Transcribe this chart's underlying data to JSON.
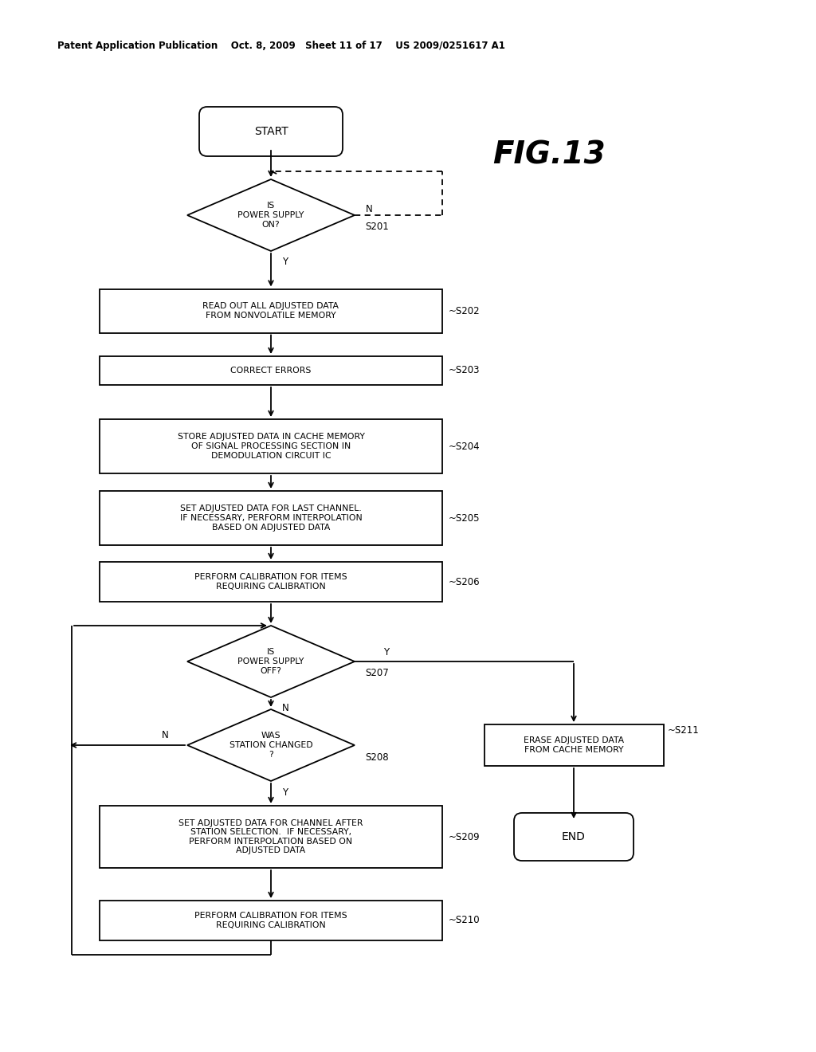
{
  "header": "Patent Application Publication    Oct. 8, 2009   Sheet 11 of 17    US 2009/0251617 A1",
  "fig_label": "FIG.13",
  "bg": "#ffffff",
  "lc": "#000000",
  "tc": "#000000",
  "lw": 1.3,
  "nodes": {
    "start_label": "START",
    "s201_label": "IS\nPOWER SUPPLY\nON?",
    "s201_step": "S201",
    "s202_label": "READ OUT ALL ADJUSTED DATA\nFROM NONVOLATILE MEMORY",
    "s202_step": "~S202",
    "s203_label": "CORRECT ERRORS",
    "s203_step": "~S203",
    "s204_label": "STORE ADJUSTED DATA IN CACHE MEMORY\nOF SIGNAL PROCESSING SECTION IN\nDEMODULATION CIRCUIT IC",
    "s204_step": "~S204",
    "s205_label": "SET ADJUSTED DATA FOR LAST CHANNEL.\nIF NECESSARY, PERFORM INTERPOLATION\nBASED ON ADJUSTED DATA",
    "s205_step": "~S205",
    "s206_label": "PERFORM CALIBRATION FOR ITEMS\nREQUIRING CALIBRATION",
    "s206_step": "~S206",
    "s207_label": "IS\nPOWER SUPPLY\nOFF?",
    "s207_step": "S207",
    "s208_label": "WAS\nSTATION CHANGED\n?",
    "s208_step": "S208",
    "s209_label": "SET ADJUSTED DATA FOR CHANNEL AFTER\nSTATION SELECTION.  IF NECESSARY,\nPERFORM INTERPOLATION BASED ON\nADJUSTED DATA",
    "s209_step": "~S209",
    "s210_label": "PERFORM CALIBRATION FOR ITEMS\nREQUIRING CALIBRATION",
    "s210_step": "~S210",
    "s211_label": "ERASE ADJUSTED DATA\nFROM CACHE MEMORY",
    "s211_step": "~S211",
    "end_label": "END"
  }
}
